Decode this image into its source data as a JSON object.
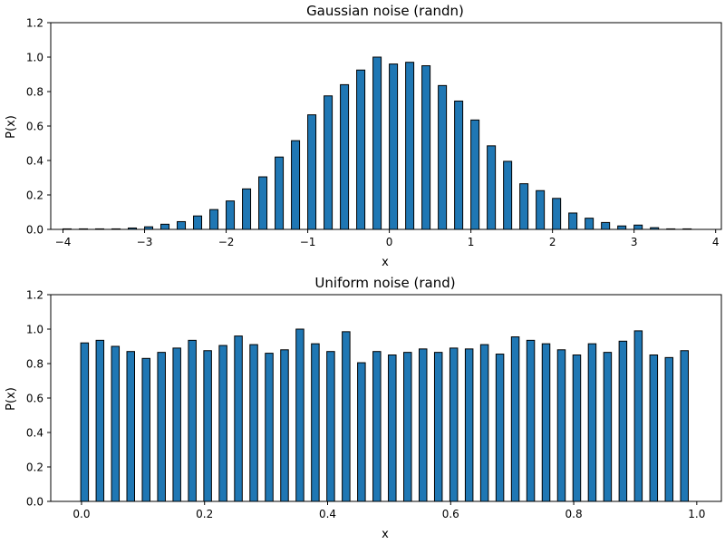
{
  "chart_data": [
    {
      "type": "bar",
      "title": "Gaussian noise (randn)",
      "xlabel": "x",
      "ylabel": "P(x)",
      "xlim": [
        -4.15,
        4.07
      ],
      "ylim": [
        0,
        1.2
      ],
      "bar_width": 0.1,
      "bar_color": "#1f77b4",
      "edge_color": "#000000",
      "grid": false,
      "x_ticks": [
        -4,
        -3,
        -2,
        -1,
        0,
        1,
        2,
        3,
        4
      ],
      "x_tick_labels": [
        "−4",
        "−3",
        "−2",
        "−1",
        "0",
        "1",
        "2",
        "3",
        "4"
      ],
      "y_ticks": [
        0,
        0.2,
        0.4,
        0.6,
        0.8,
        1.0,
        1.2
      ],
      "y_tick_labels": [
        "0.0",
        "0.2",
        "0.4",
        "0.6",
        "0.8",
        "1.0",
        "1.2"
      ],
      "x": [
        -3.95,
        -3.75,
        -3.55,
        -3.35,
        -3.15,
        -2.95,
        -2.75,
        -2.55,
        -2.35,
        -2.15,
        -1.95,
        -1.75,
        -1.55,
        -1.35,
        -1.15,
        -0.95,
        -0.75,
        -0.55,
        -0.35,
        -0.15,
        0.05,
        0.25,
        0.45,
        0.65,
        0.85,
        1.05,
        1.25,
        1.45,
        1.65,
        1.85,
        2.05,
        2.25,
        2.45,
        2.65,
        2.85,
        3.05,
        3.25,
        3.45,
        3.65
      ],
      "values": [
        0.003,
        0.003,
        0.003,
        0.003,
        0.008,
        0.015,
        0.03,
        0.045,
        0.078,
        0.115,
        0.165,
        0.235,
        0.305,
        0.42,
        0.515,
        0.665,
        0.775,
        0.84,
        0.925,
        1.0,
        0.96,
        0.97,
        0.95,
        0.835,
        0.745,
        0.635,
        0.485,
        0.395,
        0.265,
        0.225,
        0.18,
        0.095,
        0.065,
        0.04,
        0.02,
        0.025,
        0.01,
        0.003,
        0.003
      ]
    },
    {
      "type": "bar",
      "title": "Uniform noise (rand)",
      "xlabel": "x",
      "ylabel": "P(x)",
      "xlim": [
        -0.05,
        1.04
      ],
      "ylim": [
        0,
        1.2
      ],
      "bar_width": 0.0125,
      "bar_color": "#1f77b4",
      "edge_color": "#000000",
      "grid": false,
      "x_ticks": [
        0,
        0.2,
        0.4,
        0.6,
        0.8,
        1.0
      ],
      "x_tick_labels": [
        "0.0",
        "0.2",
        "0.4",
        "0.6",
        "0.8",
        "1.0"
      ],
      "y_ticks": [
        0,
        0.2,
        0.4,
        0.6,
        0.8,
        1.0,
        1.2
      ],
      "y_tick_labels": [
        "0.0",
        "0.2",
        "0.4",
        "0.6",
        "0.8",
        "1.0",
        "1.2"
      ],
      "x": [
        0.005,
        0.03,
        0.055,
        0.08,
        0.105,
        0.13,
        0.155,
        0.18,
        0.205,
        0.23,
        0.255,
        0.28,
        0.305,
        0.33,
        0.355,
        0.38,
        0.405,
        0.43,
        0.455,
        0.48,
        0.505,
        0.53,
        0.555,
        0.58,
        0.605,
        0.63,
        0.655,
        0.68,
        0.705,
        0.73,
        0.755,
        0.78,
        0.805,
        0.83,
        0.855,
        0.88,
        0.905,
        0.93,
        0.955,
        0.98
      ],
      "values": [
        0.92,
        0.935,
        0.9,
        0.87,
        0.83,
        0.865,
        0.89,
        0.935,
        0.875,
        0.905,
        0.96,
        0.91,
        0.86,
        0.88,
        1.0,
        0.915,
        0.87,
        0.985,
        0.805,
        0.87,
        0.85,
        0.865,
        0.885,
        0.865,
        0.89,
        0.885,
        0.91,
        0.855,
        0.955,
        0.935,
        0.915,
        0.88,
        0.85,
        0.915,
        0.865,
        0.93,
        0.99,
        0.85,
        0.835,
        0.875
      ]
    }
  ]
}
